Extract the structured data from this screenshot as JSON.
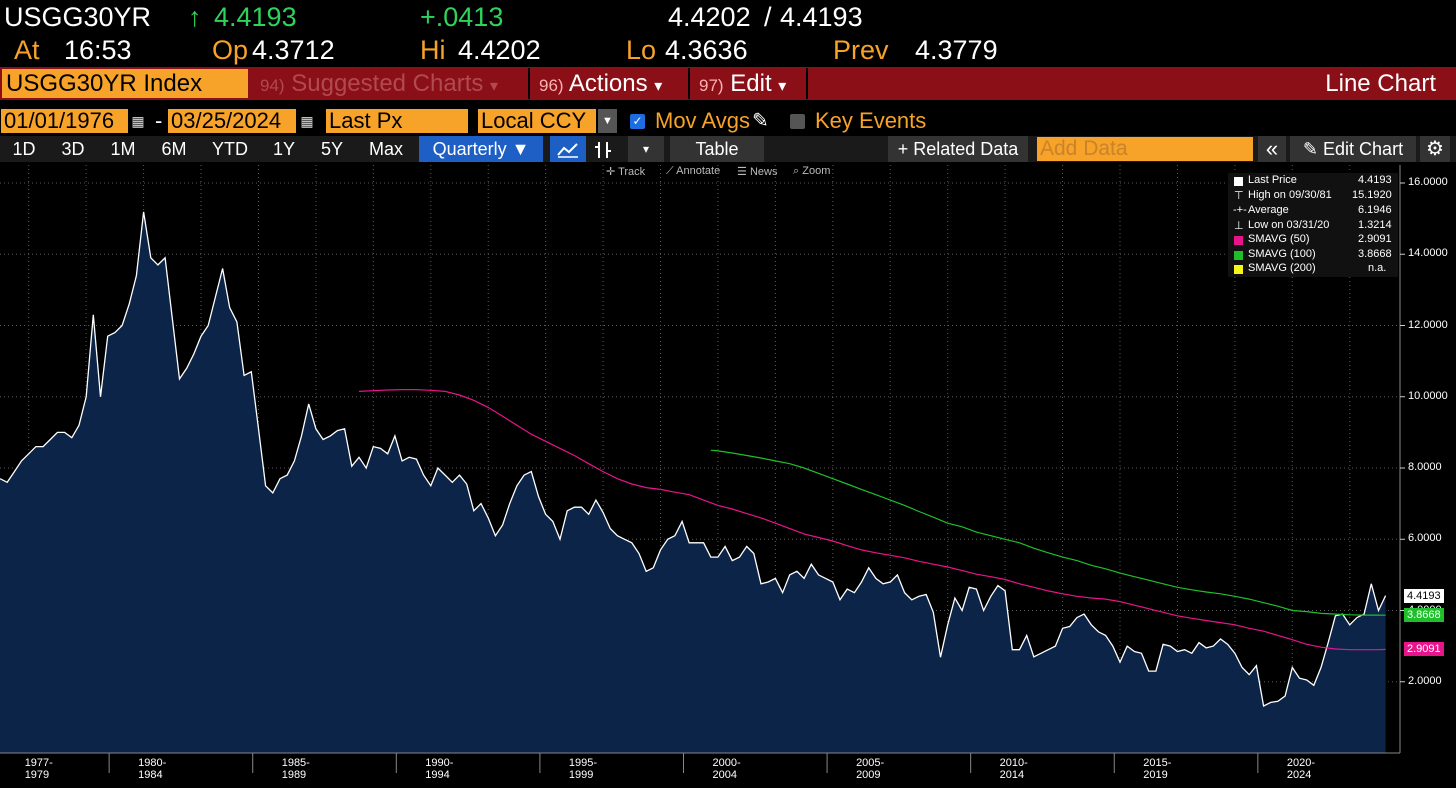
{
  "header": {
    "ticker": "USGG30YR",
    "arrow": "↑",
    "last": "4.4193",
    "change": "+.0413",
    "bid_ask_1": "4.4202",
    "bid_ask_sep": "/",
    "bid_ask_2": "4.4193",
    "at_label": "At",
    "at_time": "16:53",
    "op_label": "Op",
    "op_value": "4.3712",
    "hi_label": "Hi",
    "hi_value": "4.4202",
    "lo_label": "Lo",
    "lo_value": "4.3636",
    "prev_label": "Prev",
    "prev_value": "4.3779"
  },
  "menubar": {
    "security": "USGG30YR Index",
    "suggested_num": "94)",
    "suggested_label": "Suggested Charts",
    "actions_num": "96)",
    "actions_label": "Actions",
    "edit_num": "97)",
    "edit_label": "Edit",
    "dropdown_glyph": "▾",
    "chart_type": "Line Chart"
  },
  "params": {
    "start_date": "01/01/1976",
    "dash": "-",
    "end_date": "03/25/2024",
    "field": "Last Px",
    "currency": "Local CCY",
    "mov_avgs_label": "Mov Avgs",
    "key_events_label": "Key Events"
  },
  "toolbar": {
    "periods": [
      "1D",
      "3D",
      "1M",
      "6M",
      "YTD",
      "1Y",
      "5Y",
      "Max"
    ],
    "frequency": "Quarterly ▼",
    "table": "Table",
    "related_data": "+ Related Data",
    "add_data_placeholder": "Add Data",
    "collapse": "«",
    "edit_chart": "Edit Chart"
  },
  "chart_tools": {
    "track": "Track",
    "annotate": "Annotate",
    "news": "News",
    "zoom": "Zoom"
  },
  "legend": {
    "rows": [
      {
        "label": "Last Price",
        "value": "4.4193",
        "color": "#ffffff"
      },
      {
        "label": "High on 09/30/81",
        "value": "15.1920",
        "color": "#ffffff"
      },
      {
        "label": "Average",
        "value": "6.1946",
        "color": "#ffffff"
      },
      {
        "label": "Low on 03/31/20",
        "value": "1.3214",
        "color": "#ffffff"
      },
      {
        "label": "SMAVG (50)",
        "value": "2.9091",
        "color": "#e8148c"
      },
      {
        "label": "SMAVG (100)",
        "value": "3.8668",
        "color": "#1fbf2c"
      },
      {
        "label": "SMAVG (200)",
        "value": "n.a.",
        "color": "#f5f518"
      }
    ]
  },
  "chart_data": {
    "type": "area",
    "ylim": [
      0,
      16.5
    ],
    "y_ticks": [
      "16.0000",
      "14.0000",
      "12.0000",
      "10.0000",
      "8.0000",
      "6.0000",
      "4.0000",
      "2.0000"
    ],
    "y_tick_values": [
      16,
      14,
      12,
      10,
      8,
      6,
      4,
      2
    ],
    "x_range": [
      1976.0,
      2024.75
    ],
    "x_tick_labels": [
      "1977-1979",
      "1980-1984",
      "1985-1989",
      "1990-1994",
      "1995-1999",
      "2000-2004",
      "2005-2009",
      "2010-2014",
      "2015-2019",
      "2020-2024"
    ],
    "x_tick_centers": [
      1977.8,
      1981.75,
      1986.75,
      1991.75,
      1996.75,
      2001.75,
      2006.75,
      2011.75,
      2016.75,
      2021.75
    ],
    "series": [
      {
        "name": "Last Price",
        "color": "#ffffff",
        "fill": "#0c2448",
        "x": [
          1976.0,
          1976.25,
          1976.5,
          1976.75,
          1977.0,
          1977.25,
          1977.5,
          1977.75,
          1978.0,
          1978.25,
          1978.5,
          1978.75,
          1979.0,
          1979.25,
          1979.5,
          1979.75,
          1980.0,
          1980.25,
          1980.5,
          1980.75,
          1981.0,
          1981.25,
          1981.5,
          1981.75,
          1982.0,
          1982.25,
          1982.5,
          1982.75,
          1983.0,
          1983.25,
          1983.5,
          1983.75,
          1984.0,
          1984.25,
          1984.5,
          1984.75,
          1985.0,
          1985.25,
          1985.5,
          1985.75,
          1986.0,
          1986.25,
          1986.5,
          1986.75,
          1987.0,
          1987.25,
          1987.5,
          1987.75,
          1988.0,
          1988.25,
          1988.5,
          1988.75,
          1989.0,
          1989.25,
          1989.5,
          1989.75,
          1990.0,
          1990.25,
          1990.5,
          1990.75,
          1991.0,
          1991.25,
          1991.5,
          1991.75,
          1992.0,
          1992.25,
          1992.5,
          1992.75,
          1993.0,
          1993.25,
          1993.5,
          1993.75,
          1994.0,
          1994.25,
          1994.5,
          1994.75,
          1995.0,
          1995.25,
          1995.5,
          1995.75,
          1996.0,
          1996.25,
          1996.5,
          1996.75,
          1997.0,
          1997.25,
          1997.5,
          1997.75,
          1998.0,
          1998.25,
          1998.5,
          1998.75,
          1999.0,
          1999.25,
          1999.5,
          1999.75,
          2000.0,
          2000.25,
          2000.5,
          2000.75,
          2001.0,
          2001.25,
          2001.5,
          2001.75,
          2002.0,
          2002.25,
          2002.5,
          2002.75,
          2003.0,
          2003.25,
          2003.5,
          2003.75,
          2004.0,
          2004.25,
          2004.5,
          2004.75,
          2005.0,
          2005.25,
          2005.5,
          2005.75,
          2006.0,
          2006.25,
          2006.5,
          2006.75,
          2007.0,
          2007.25,
          2007.5,
          2007.75,
          2008.0,
          2008.25,
          2008.5,
          2008.75,
          2009.0,
          2009.25,
          2009.5,
          2009.75,
          2010.0,
          2010.25,
          2010.5,
          2010.75,
          2011.0,
          2011.25,
          2011.5,
          2011.75,
          2012.0,
          2012.25,
          2012.5,
          2012.75,
          2013.0,
          2013.25,
          2013.5,
          2013.75,
          2014.0,
          2014.25,
          2014.5,
          2014.75,
          2015.0,
          2015.25,
          2015.5,
          2015.75,
          2016.0,
          2016.25,
          2016.5,
          2016.75,
          2017.0,
          2017.25,
          2017.5,
          2017.75,
          2018.0,
          2018.25,
          2018.5,
          2018.75,
          2019.0,
          2019.25,
          2019.5,
          2019.75,
          2020.0,
          2020.25,
          2020.5,
          2020.75,
          2021.0,
          2021.25,
          2021.5,
          2021.75,
          2022.0,
          2022.25,
          2022.5,
          2022.75,
          2023.0,
          2023.25,
          2023.5,
          2023.75,
          2024.0,
          2024.25
        ],
        "values": [
          7.7,
          7.6,
          7.9,
          8.2,
          8.4,
          8.6,
          8.6,
          8.8,
          9.0,
          9.0,
          8.85,
          9.2,
          10.0,
          12.3,
          10.0,
          11.7,
          11.8,
          12.0,
          12.6,
          13.4,
          15.19,
          13.9,
          13.7,
          13.9,
          12.2,
          10.5,
          10.8,
          11.2,
          11.7,
          12.0,
          12.8,
          13.6,
          12.5,
          12.1,
          10.6,
          10.7,
          9.1,
          7.5,
          7.3,
          7.7,
          7.8,
          8.2,
          8.9,
          9.8,
          9.1,
          8.8,
          8.9,
          9.05,
          9.1,
          8.05,
          8.3,
          8.0,
          8.6,
          8.55,
          8.4,
          8.9,
          8.2,
          8.3,
          8.25,
          7.8,
          7.5,
          8.0,
          7.8,
          7.6,
          7.8,
          7.55,
          6.8,
          7.0,
          6.6,
          6.1,
          6.4,
          7.0,
          7.5,
          7.8,
          7.9,
          7.2,
          6.7,
          6.5,
          6.0,
          6.8,
          6.9,
          6.9,
          6.7,
          7.1,
          6.75,
          6.3,
          6.1,
          6.0,
          5.9,
          5.6,
          5.1,
          5.2,
          5.7,
          6.0,
          6.1,
          6.5,
          5.9,
          5.9,
          5.9,
          5.5,
          5.5,
          5.8,
          5.4,
          5.5,
          5.8,
          5.6,
          4.75,
          4.8,
          4.9,
          4.5,
          5.0,
          5.1,
          4.9,
          5.3,
          5.0,
          4.9,
          4.8,
          4.3,
          4.6,
          4.5,
          4.8,
          5.2,
          4.9,
          4.75,
          4.8,
          5.0,
          4.5,
          4.3,
          4.4,
          4.45,
          3.95,
          2.69,
          3.6,
          4.35,
          4.0,
          4.65,
          4.6,
          4.0,
          4.4,
          4.7,
          4.55,
          2.9,
          2.9,
          3.3,
          2.7,
          2.8,
          2.9,
          3.0,
          3.5,
          3.55,
          3.8,
          3.9,
          3.6,
          3.4,
          3.3,
          3.0,
          2.55,
          3.0,
          2.85,
          2.8,
          2.3,
          2.3,
          3.05,
          3.0,
          2.85,
          2.9,
          2.8,
          3.1,
          2.95,
          3.0,
          3.2,
          3.05,
          2.8,
          2.4,
          2.2,
          2.45,
          1.32,
          1.42,
          1.45,
          1.6,
          2.4,
          2.1,
          2.05,
          1.9,
          2.4,
          3.1,
          3.85,
          3.9,
          3.6,
          3.8,
          3.9,
          4.75,
          4.0,
          4.4193
        ]
      },
      {
        "name": "SMAVG (50)",
        "color": "#e8148c",
        "x": [
          1988.5,
          1989.0,
          1989.5,
          1990.0,
          1990.5,
          1991.0,
          1991.5,
          1992.0,
          1992.5,
          1993.0,
          1993.5,
          1994.0,
          1994.5,
          1995.0,
          1995.5,
          1996.0,
          1996.5,
          1997.0,
          1997.5,
          1998.0,
          1998.5,
          1999.0,
          1999.5,
          2000.0,
          2000.5,
          2001.0,
          2001.5,
          2002.0,
          2002.5,
          2003.0,
          2003.5,
          2004.0,
          2004.5,
          2005.0,
          2005.5,
          2006.0,
          2006.5,
          2007.0,
          2007.5,
          2008.0,
          2008.5,
          2009.0,
          2009.5,
          2010.0,
          2010.5,
          2011.0,
          2011.5,
          2012.0,
          2012.5,
          2013.0,
          2013.5,
          2014.0,
          2014.5,
          2015.0,
          2015.5,
          2016.0,
          2016.5,
          2017.0,
          2017.5,
          2018.0,
          2018.5,
          2019.0,
          2019.5,
          2020.0,
          2020.5,
          2021.0,
          2021.5,
          2022.0,
          2022.5,
          2023.0,
          2023.5,
          2024.0,
          2024.25
        ],
        "values": [
          10.15,
          10.17,
          10.19,
          10.2,
          10.2,
          10.18,
          10.15,
          10.05,
          9.9,
          9.7,
          9.45,
          9.2,
          8.95,
          8.75,
          8.55,
          8.35,
          8.12,
          7.9,
          7.7,
          7.55,
          7.45,
          7.4,
          7.32,
          7.25,
          7.1,
          6.95,
          6.85,
          6.72,
          6.6,
          6.45,
          6.3,
          6.15,
          6.05,
          5.95,
          5.82,
          5.7,
          5.62,
          5.55,
          5.48,
          5.38,
          5.3,
          5.22,
          5.12,
          5.02,
          4.95,
          4.87,
          4.75,
          4.65,
          4.55,
          4.47,
          4.4,
          4.35,
          4.32,
          4.25,
          4.15,
          4.05,
          3.95,
          3.85,
          3.78,
          3.72,
          3.66,
          3.6,
          3.5,
          3.42,
          3.3,
          3.18,
          3.05,
          2.97,
          2.92,
          2.9,
          2.9,
          2.9,
          2.9091
        ]
      },
      {
        "name": "SMAVG (100)",
        "color": "#1fbf2c",
        "x": [
          2000.75,
          2001.0,
          2001.5,
          2002.0,
          2002.5,
          2003.0,
          2003.5,
          2004.0,
          2004.5,
          2005.0,
          2005.5,
          2006.0,
          2006.5,
          2007.0,
          2007.5,
          2008.0,
          2008.5,
          2009.0,
          2009.5,
          2010.0,
          2010.5,
          2011.0,
          2011.5,
          2012.0,
          2012.5,
          2013.0,
          2013.5,
          2014.0,
          2014.5,
          2015.0,
          2015.5,
          2016.0,
          2016.5,
          2017.0,
          2017.5,
          2018.0,
          2018.5,
          2019.0,
          2019.5,
          2020.0,
          2020.5,
          2021.0,
          2021.5,
          2022.0,
          2022.5,
          2023.0,
          2023.5,
          2024.0,
          2024.25
        ],
        "values": [
          8.5,
          8.48,
          8.42,
          8.35,
          8.28,
          8.2,
          8.12,
          8.0,
          7.85,
          7.7,
          7.55,
          7.4,
          7.25,
          7.1,
          6.95,
          6.78,
          6.62,
          6.45,
          6.35,
          6.2,
          6.1,
          6.0,
          5.9,
          5.75,
          5.62,
          5.5,
          5.4,
          5.27,
          5.17,
          5.05,
          4.95,
          4.85,
          4.75,
          4.65,
          4.58,
          4.52,
          4.47,
          4.4,
          4.32,
          4.22,
          4.12,
          4.0,
          3.97,
          3.92,
          3.9,
          3.88,
          3.87,
          3.87,
          3.8668
        ]
      }
    ],
    "last_labels": [
      {
        "text": "4.4193",
        "value": 4.4193,
        "bg": "#ffffff",
        "fg": "#000000"
      },
      {
        "text": "3.8668",
        "value": 3.8668,
        "bg": "#1fbf2c",
        "fg": "#ffffff"
      },
      {
        "text": "2.9091",
        "value": 2.9091,
        "bg": "#e8148c",
        "fg": "#ffffff"
      }
    ]
  }
}
